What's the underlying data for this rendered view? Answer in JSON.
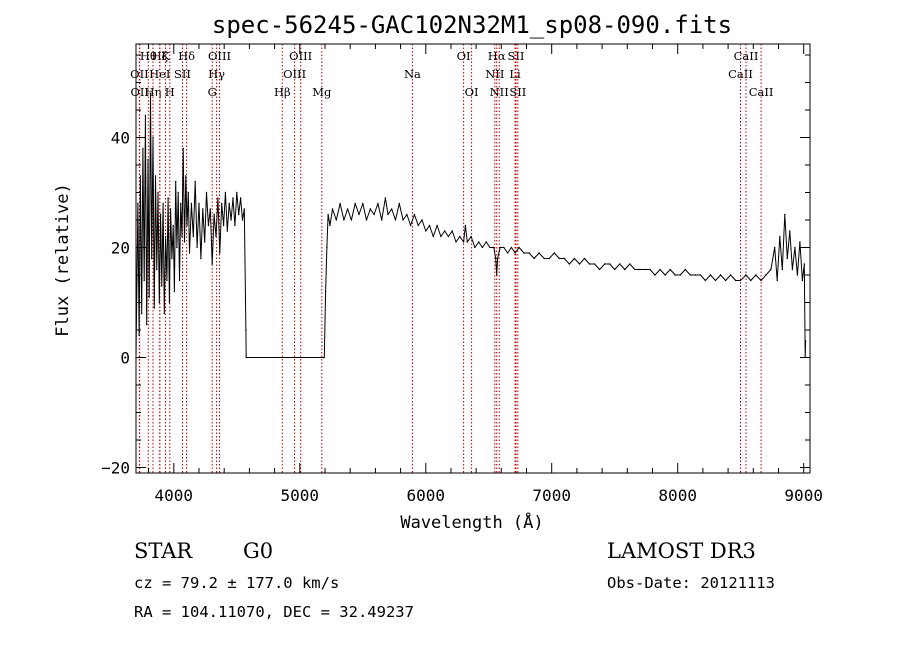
{
  "chart_data": {
    "type": "line",
    "title": "spec-56245-GAC102N32M1_sp08-090.fits",
    "xlabel": "Wavelength (Å)",
    "ylabel": "Flux (relative)",
    "xlim": [
      3700,
      9050
    ],
    "ylim": [
      -21,
      57
    ],
    "xticks": [
      4000,
      5000,
      6000,
      7000,
      8000,
      9000
    ],
    "yticks": [
      -20,
      0,
      20,
      40
    ],
    "series": [
      {
        "name": "flux",
        "points": [
          [
            3700,
            0
          ],
          [
            3715,
            28
          ],
          [
            3725,
            4
          ],
          [
            3735,
            33
          ],
          [
            3745,
            8
          ],
          [
            3755,
            38
          ],
          [
            3765,
            14
          ],
          [
            3775,
            44
          ],
          [
            3785,
            6
          ],
          [
            3795,
            36
          ],
          [
            3805,
            11
          ],
          [
            3815,
            48
          ],
          [
            3825,
            18
          ],
          [
            3835,
            40
          ],
          [
            3845,
            9
          ],
          [
            3855,
            33
          ],
          [
            3865,
            16
          ],
          [
            3875,
            30
          ],
          [
            3885,
            10
          ],
          [
            3895,
            26
          ],
          [
            3905,
            13
          ],
          [
            3915,
            28
          ],
          [
            3925,
            8
          ],
          [
            3935,
            22
          ],
          [
            3945,
            14
          ],
          [
            3955,
            29
          ],
          [
            3965,
            10
          ],
          [
            3975,
            27
          ],
          [
            3985,
            18
          ],
          [
            3995,
            24
          ],
          [
            4005,
            12
          ],
          [
            4015,
            32
          ],
          [
            4025,
            20
          ],
          [
            4035,
            30
          ],
          [
            4045,
            14
          ],
          [
            4055,
            28
          ],
          [
            4065,
            22
          ],
          [
            4075,
            38
          ],
          [
            4085,
            21
          ],
          [
            4095,
            33
          ],
          [
            4105,
            24
          ],
          [
            4115,
            30
          ],
          [
            4125,
            19
          ],
          [
            4140,
            28
          ],
          [
            4155,
            22
          ],
          [
            4170,
            32
          ],
          [
            4185,
            20
          ],
          [
            4200,
            28
          ],
          [
            4215,
            18
          ],
          [
            4230,
            27
          ],
          [
            4245,
            21
          ],
          [
            4260,
            30
          ],
          [
            4275,
            24
          ],
          [
            4290,
            27
          ],
          [
            4305,
            17
          ],
          [
            4320,
            26
          ],
          [
            4335,
            22
          ],
          [
            4350,
            29
          ],
          [
            4365,
            19
          ],
          [
            4380,
            28
          ],
          [
            4395,
            24
          ],
          [
            4410,
            30
          ],
          [
            4425,
            23
          ],
          [
            4440,
            28
          ],
          [
            4455,
            25
          ],
          [
            4470,
            29
          ],
          [
            4485,
            24
          ],
          [
            4500,
            30
          ],
          [
            4515,
            26
          ],
          [
            4530,
            29
          ],
          [
            4545,
            25
          ],
          [
            4560,
            27
          ],
          [
            4572,
            5
          ],
          [
            4575,
            0
          ],
          [
            5195,
            0
          ],
          [
            5205,
            12
          ],
          [
            5215,
            20
          ],
          [
            5225,
            26
          ],
          [
            5240,
            24
          ],
          [
            5260,
            27
          ],
          [
            5290,
            25
          ],
          [
            5320,
            28
          ],
          [
            5350,
            25
          ],
          [
            5380,
            27
          ],
          [
            5410,
            25
          ],
          [
            5440,
            28
          ],
          [
            5470,
            26
          ],
          [
            5500,
            28
          ],
          [
            5530,
            25
          ],
          [
            5560,
            27
          ],
          [
            5590,
            26
          ],
          [
            5620,
            28
          ],
          [
            5650,
            25
          ],
          [
            5680,
            29
          ],
          [
            5700,
            26
          ],
          [
            5730,
            27
          ],
          [
            5760,
            25
          ],
          [
            5790,
            28
          ],
          [
            5820,
            25
          ],
          [
            5850,
            26
          ],
          [
            5880,
            24
          ],
          [
            5910,
            26
          ],
          [
            5940,
            24
          ],
          [
            5970,
            25
          ],
          [
            6000,
            23
          ],
          [
            6030,
            24
          ],
          [
            6060,
            22
          ],
          [
            6090,
            24
          ],
          [
            6120,
            22
          ],
          [
            6150,
            23
          ],
          [
            6180,
            22
          ],
          [
            6210,
            23
          ],
          [
            6240,
            21
          ],
          [
            6270,
            22
          ],
          [
            6300,
            21
          ],
          [
            6315,
            24
          ],
          [
            6330,
            21
          ],
          [
            6360,
            22
          ],
          [
            6390,
            20
          ],
          [
            6420,
            21
          ],
          [
            6450,
            20
          ],
          [
            6480,
            21
          ],
          [
            6510,
            20
          ],
          [
            6540,
            20
          ],
          [
            6555,
            18
          ],
          [
            6563,
            15
          ],
          [
            6570,
            18
          ],
          [
            6590,
            20
          ],
          [
            6620,
            20
          ],
          [
            6650,
            19
          ],
          [
            6680,
            20
          ],
          [
            6710,
            19
          ],
          [
            6740,
            20
          ],
          [
            6780,
            19
          ],
          [
            6820,
            19
          ],
          [
            6860,
            18
          ],
          [
            6900,
            19
          ],
          [
            6940,
            18
          ],
          [
            6980,
            18
          ],
          [
            7020,
            19
          ],
          [
            7060,
            18
          ],
          [
            7100,
            18
          ],
          [
            7140,
            17
          ],
          [
            7180,
            18
          ],
          [
            7220,
            17
          ],
          [
            7260,
            18
          ],
          [
            7300,
            17
          ],
          [
            7340,
            17
          ],
          [
            7380,
            16
          ],
          [
            7420,
            17
          ],
          [
            7460,
            17
          ],
          [
            7500,
            16
          ],
          [
            7540,
            17
          ],
          [
            7580,
            16
          ],
          [
            7620,
            17
          ],
          [
            7660,
            16
          ],
          [
            7700,
            16
          ],
          [
            7740,
            16
          ],
          [
            7780,
            16
          ],
          [
            7820,
            15
          ],
          [
            7860,
            16
          ],
          [
            7900,
            15
          ],
          [
            7940,
            16
          ],
          [
            7980,
            15
          ],
          [
            8020,
            15
          ],
          [
            8060,
            16
          ],
          [
            8100,
            15
          ],
          [
            8140,
            15
          ],
          [
            8180,
            15
          ],
          [
            8220,
            14
          ],
          [
            8260,
            15
          ],
          [
            8300,
            14
          ],
          [
            8340,
            15
          ],
          [
            8380,
            14
          ],
          [
            8420,
            15
          ],
          [
            8460,
            14
          ],
          [
            8498,
            14
          ],
          [
            8542,
            15
          ],
          [
            8580,
            14
          ],
          [
            8620,
            15
          ],
          [
            8662,
            14
          ],
          [
            8700,
            15
          ],
          [
            8740,
            16
          ],
          [
            8770,
            20
          ],
          [
            8790,
            14
          ],
          [
            8810,
            22
          ],
          [
            8830,
            16
          ],
          [
            8850,
            26
          ],
          [
            8870,
            18
          ],
          [
            8890,
            23
          ],
          [
            8910,
            16
          ],
          [
            8930,
            20
          ],
          [
            8950,
            15
          ],
          [
            8970,
            21
          ],
          [
            8990,
            14
          ],
          [
            9005,
            17
          ],
          [
            9012,
            0
          ],
          [
            9015,
            3
          ]
        ]
      }
    ],
    "lines": [
      {
        "label": "OII",
        "wave": 3727,
        "row": 2
      },
      {
        "label": "OII",
        "wave": 3729,
        "row": 3
      },
      {
        "label": "Hθ",
        "wave": 3798,
        "row": 1
      },
      {
        "label": "Hη",
        "wave": 3835,
        "row": 3
      },
      {
        "label": "Hζ",
        "wave": 3889,
        "row": 1
      },
      {
        "label": "HeI",
        "wave": 3889,
        "row": 2
      },
      {
        "label": "K",
        "wave": 3934,
        "row": 1
      },
      {
        "label": "H",
        "wave": 3968,
        "row": 3
      },
      {
        "label": "SII",
        "wave": 4069,
        "row": 2
      },
      {
        "label": "Hδ",
        "wave": 4102,
        "row": 1
      },
      {
        "label": "G",
        "wave": 4305,
        "row": 3
      },
      {
        "label": "Hγ",
        "wave": 4340,
        "row": 2
      },
      {
        "label": "OIII",
        "wave": 4363,
        "row": 1
      },
      {
        "label": "Hβ",
        "wave": 4861,
        "row": 3
      },
      {
        "label": "OIII",
        "wave": 4959,
        "row": 2
      },
      {
        "label": "OIII",
        "wave": 5007,
        "row": 1
      },
      {
        "label": "Mg",
        "wave": 5175,
        "row": 3
      },
      {
        "label": "Na",
        "wave": 5894,
        "row": 2
      },
      {
        "label": "OI",
        "wave": 6300,
        "row": 1
      },
      {
        "label": "OI",
        "wave": 6364,
        "row": 3
      },
      {
        "label": "NII",
        "wave": 6548,
        "row": 2
      },
      {
        "label": "Hα",
        "wave": 6563,
        "row": 1
      },
      {
        "label": "NII",
        "wave": 6583,
        "row": 3
      },
      {
        "label": "Li",
        "wave": 6708,
        "row": 2
      },
      {
        "label": "SII",
        "wave": 6716,
        "row": 1
      },
      {
        "label": "SII",
        "wave": 6731,
        "row": 3
      },
      {
        "label": "CaII",
        "wave": 8498,
        "row": 2
      },
      {
        "label": "CaII",
        "wave": 8542,
        "row": 1
      },
      {
        "label": "CaII",
        "wave": 8662,
        "row": 3
      }
    ],
    "line_color": "#c00000"
  },
  "info": {
    "class": "STAR",
    "subclass": "G0",
    "survey": "LAMOST DR3",
    "redshift": "cz = 79.2 ± 177.0 km/s",
    "obs_date": "Obs-Date: 20121113",
    "coords": "RA = 104.11070, DEC =  32.49237"
  }
}
